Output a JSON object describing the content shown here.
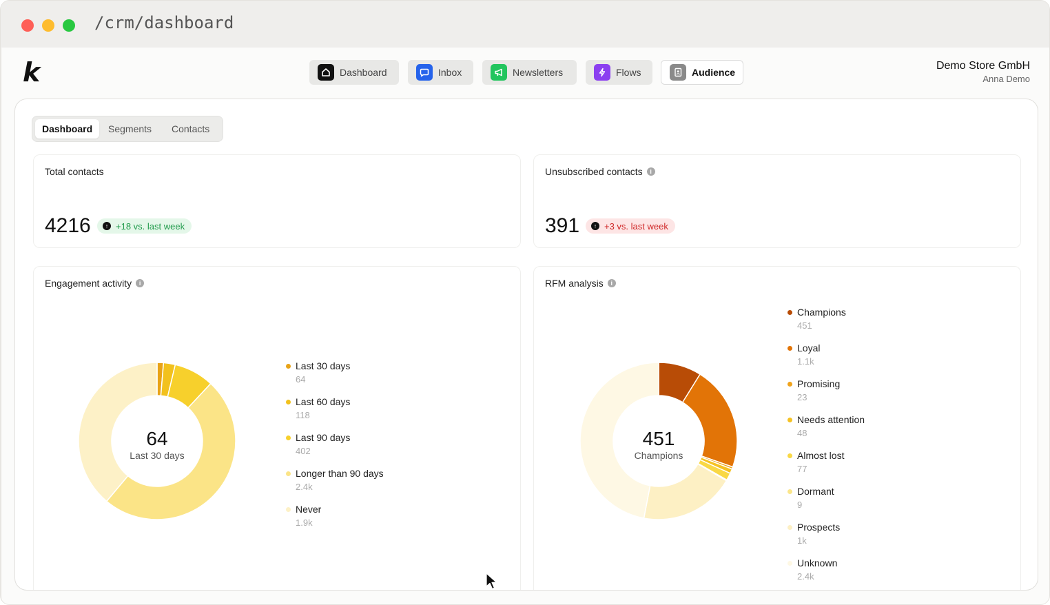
{
  "window": {
    "url": "/crm/dashboard"
  },
  "topnav": {
    "items": [
      {
        "label": "Dashboard",
        "icon": "home-icon",
        "color": "#111111"
      },
      {
        "label": "Inbox",
        "icon": "chat-bubble-icon",
        "color": "#2563eb"
      },
      {
        "label": "Newsletters",
        "icon": "megaphone-icon",
        "color": "#22c55e"
      },
      {
        "label": "Flows",
        "icon": "lightning-icon",
        "color": "#8b3ff0"
      },
      {
        "label": "Audience",
        "icon": "contact-book-icon",
        "color": "#8a8a8a"
      }
    ],
    "active": "Audience"
  },
  "account": {
    "store": "Demo Store GmbH",
    "user": "Anna Demo"
  },
  "subtabs": {
    "items": [
      "Dashboard",
      "Segments",
      "Contacts"
    ],
    "active": "Dashboard"
  },
  "total_contacts": {
    "title": "Total contacts",
    "value": "4216",
    "change": "+18 vs. last week"
  },
  "unsubscribed": {
    "title": "Unsubscribed contacts",
    "value": "391",
    "change": "+3 vs. last week"
  },
  "engagement": {
    "title": "Engagement activity",
    "center_value": "64",
    "center_label": "Last 30 days",
    "legend": [
      {
        "label": "Last 30 days",
        "value": "64",
        "color": "#e8a317"
      },
      {
        "label": "Last 60 days",
        "value": "118",
        "color": "#f2c11d"
      },
      {
        "label": "Last 90 days",
        "value": "402",
        "color": "#f7d02c"
      },
      {
        "label": "Longer than 90 days",
        "value": "2.4k",
        "color": "#fbe487"
      },
      {
        "label": "Never",
        "value": "1.9k",
        "color": "#fdf1c7"
      }
    ]
  },
  "rfm": {
    "title": "RFM analysis",
    "center_value": "451",
    "center_label": "Champions",
    "legend": [
      {
        "label": "Champions",
        "value": "451",
        "color": "#b84c06"
      },
      {
        "label": "Loyal",
        "value": "1.1k",
        "color": "#e27407"
      },
      {
        "label": "Promising",
        "value": "23",
        "color": "#f0a31b"
      },
      {
        "label": "Needs attention",
        "value": "48",
        "color": "#f5c223"
      },
      {
        "label": "Almost lost",
        "value": "77",
        "color": "#f9d845"
      },
      {
        "label": "Dormant",
        "value": "9",
        "color": "#fbe68b"
      },
      {
        "label": "Prospects",
        "value": "1k",
        "color": "#fdf0c4"
      },
      {
        "label": "Unknown",
        "value": "2.4k",
        "color": "#fef8e4"
      }
    ]
  },
  "chart_data": [
    {
      "type": "pie",
      "title": "Engagement activity",
      "categories": [
        "Last 30 days",
        "Last 60 days",
        "Last 90 days",
        "Longer than 90 days",
        "Never"
      ],
      "values": [
        64,
        118,
        402,
        2400,
        1900
      ]
    },
    {
      "type": "pie",
      "title": "RFM analysis",
      "categories": [
        "Champions",
        "Loyal",
        "Promising",
        "Needs attention",
        "Almost lost",
        "Dormant",
        "Prospects",
        "Unknown"
      ],
      "values": [
        451,
        1100,
        23,
        48,
        77,
        9,
        1000,
        2400
      ]
    }
  ]
}
